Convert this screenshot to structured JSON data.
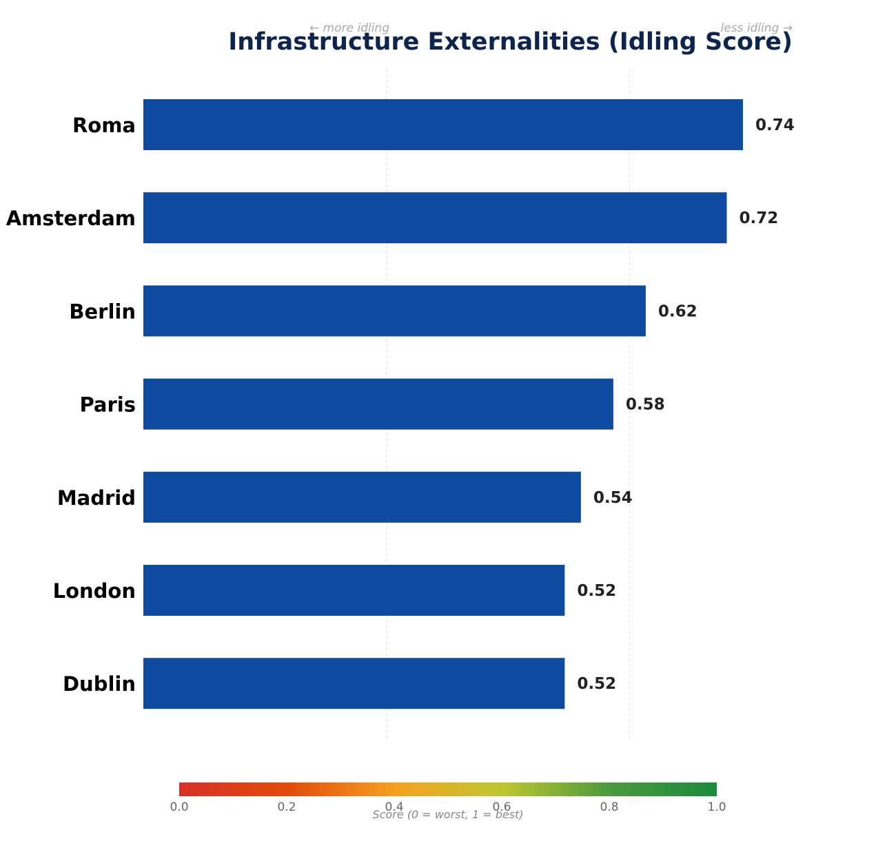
{
  "chart_data": {
    "type": "bar",
    "orientation": "horizontal",
    "title": "Infrastructure Externalities (Idling Score)",
    "hint_left": "← more idling",
    "hint_right": "less idling →",
    "categories": [
      "Roma",
      "Amsterdam",
      "Berlin",
      "Paris",
      "Madrid",
      "London",
      "Dublin"
    ],
    "values": [
      0.74,
      0.72,
      0.62,
      0.58,
      0.54,
      0.52,
      0.52
    ],
    "value_labels": [
      "0.74",
      "0.72",
      "0.62",
      "0.58",
      "0.54",
      "0.52",
      "0.52"
    ],
    "xlim": [
      0,
      0.78
    ],
    "gridlines_x": [
      0.3,
      0.6
    ],
    "grid": true,
    "colorbar": {
      "label": "Score (0 = worst, 1 = best)",
      "ticks": [
        "0.0",
        "0.2",
        "0.4",
        "0.6",
        "0.8",
        "1.0"
      ],
      "range": [
        0,
        1
      ]
    }
  },
  "colors": {
    "bar": "#0f4aa1",
    "title": "#0b2550",
    "grid": "#dddddd",
    "colorbar_stops": [
      "#d73027",
      "#e34a0b",
      "#f6a01f",
      "#bfc72f",
      "#4c9a3e",
      "#1a8a3b"
    ]
  }
}
